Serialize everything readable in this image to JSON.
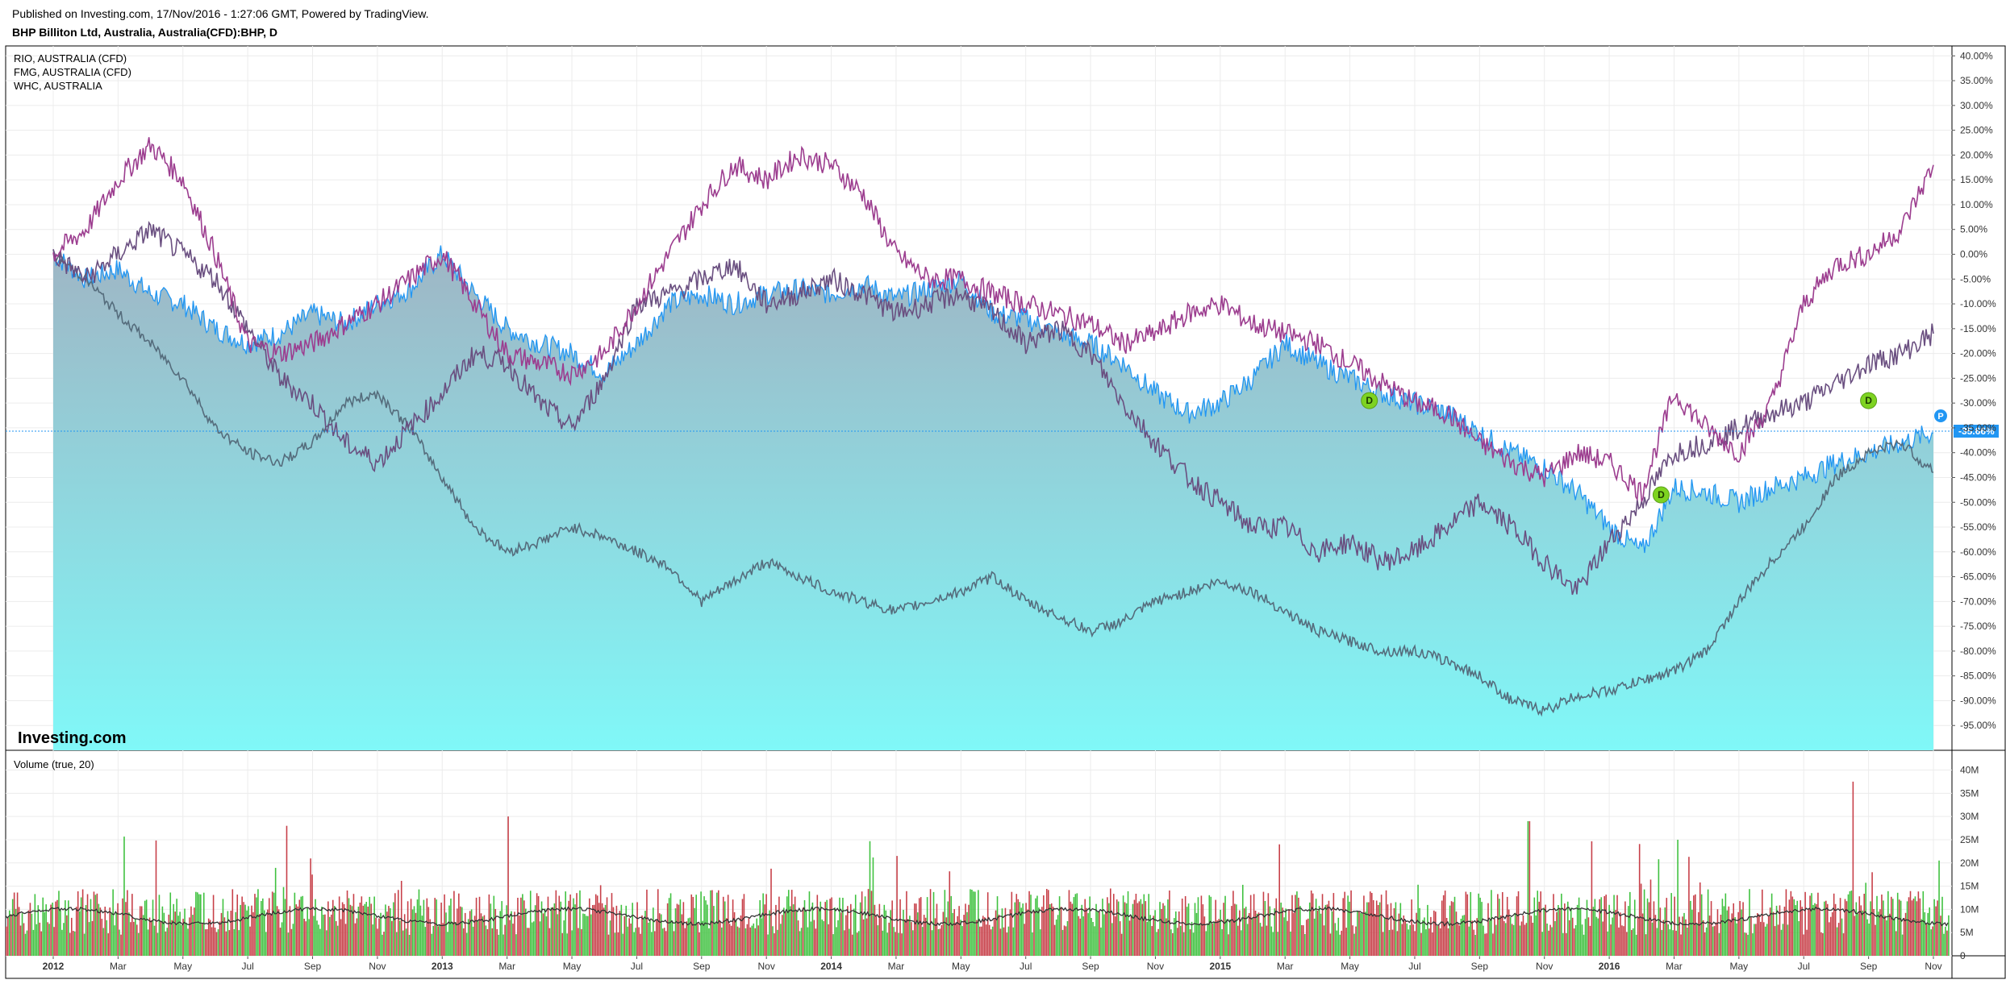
{
  "header": {
    "published": "Published on Investing.com, 17/Nov/2016 - 1:27:06 GMT, Powered by TradingView.",
    "symbol": "BHP Billiton Ltd, Australia, Australia(CFD):BHP, D"
  },
  "legend": [
    "RIO, AUSTRALIA (CFD)",
    "FMG, AUSTRALIA (CFD)",
    "WHC, AUSTRALIA"
  ],
  "volume_label": "Volume (true, 20)",
  "watermark": "Investing.com",
  "colors": {
    "bhp_line": "#2196f3",
    "bhp_fill_top": "#9fb5c4",
    "bhp_fill_bottom": "#80f8f8",
    "rio": "#9c3d8f",
    "fmg": "#6a4f80",
    "whc": "#556c7c",
    "vol_up": "#3fc13f",
    "vol_down": "#c73f48",
    "vol_ma": "#333333",
    "current_label": "#2196f3",
    "dividend": "#7ed321"
  },
  "chart_data": {
    "type": "line",
    "x_ticks": [
      "2012",
      "Mar",
      "May",
      "Jul",
      "Sep",
      "Nov",
      "2013",
      "Mar",
      "May",
      "Jul",
      "Sep",
      "Nov",
      "2014",
      "Mar",
      "May",
      "Jul",
      "Sep",
      "Nov",
      "2015",
      "Mar",
      "May",
      "Jul",
      "Sep",
      "Nov",
      "2016",
      "Mar",
      "May",
      "Jul",
      "Sep",
      "Nov"
    ],
    "y_ticks": [
      "40.00%",
      "35.00%",
      "30.00%",
      "25.00%",
      "20.00%",
      "15.00%",
      "10.00%",
      "5.00%",
      "0.00%",
      "-5.00%",
      "-10.00%",
      "-15.00%",
      "-20.00%",
      "-25.00%",
      "-30.00%",
      "-35.00%",
      "-40.00%",
      "-45.00%",
      "-50.00%",
      "-55.00%",
      "-60.00%",
      "-65.00%",
      "-70.00%",
      "-75.00%",
      "-80.00%",
      "-85.00%",
      "-90.00%",
      "-95.00%"
    ],
    "ylim": [
      -100,
      42
    ],
    "current_value_label": "-35.66%",
    "current_marker_label": "P",
    "dividend_label": "D",
    "dividends": [
      {
        "month": 56.0,
        "value": -29.5
      },
      {
        "month": 49.6,
        "value": -48.5
      },
      {
        "month": 40.6,
        "value": -29.5
      }
    ],
    "series": [
      {
        "name": "BHP",
        "key": "bhp",
        "points": [
          [
            0,
            0
          ],
          [
            1,
            -5
          ],
          [
            2,
            -3
          ],
          [
            3,
            -8
          ],
          [
            4,
            -10
          ],
          [
            5,
            -15
          ],
          [
            6,
            -18
          ],
          [
            7,
            -16
          ],
          [
            8,
            -12
          ],
          [
            9,
            -14
          ],
          [
            10,
            -10
          ],
          [
            11,
            -7
          ],
          [
            12,
            0
          ],
          [
            13,
            -8
          ],
          [
            14,
            -15
          ],
          [
            15,
            -18
          ],
          [
            16,
            -20
          ],
          [
            17,
            -24
          ],
          [
            18,
            -18
          ],
          [
            19,
            -10
          ],
          [
            20,
            -8
          ],
          [
            21,
            -10
          ],
          [
            22,
            -8
          ],
          [
            23,
            -7
          ],
          [
            24,
            -8
          ],
          [
            25,
            -6
          ],
          [
            26,
            -9
          ],
          [
            27,
            -7
          ],
          [
            28,
            -5
          ],
          [
            29,
            -12
          ],
          [
            30,
            -13
          ],
          [
            31,
            -16
          ],
          [
            32,
            -18
          ],
          [
            33,
            -22
          ],
          [
            34,
            -28
          ],
          [
            35,
            -32
          ],
          [
            36,
            -30
          ],
          [
            37,
            -25
          ],
          [
            38,
            -18
          ],
          [
            39,
            -22
          ],
          [
            40,
            -25
          ],
          [
            41,
            -28
          ],
          [
            42,
            -30
          ],
          [
            43,
            -32
          ],
          [
            44,
            -36
          ],
          [
            45,
            -40
          ],
          [
            46,
            -43
          ],
          [
            47,
            -48
          ],
          [
            48,
            -55
          ],
          [
            49,
            -60
          ],
          [
            50,
            -47
          ],
          [
            51,
            -48
          ],
          [
            52,
            -50
          ],
          [
            53,
            -47
          ],
          [
            54,
            -45
          ],
          [
            55,
            -42
          ],
          [
            56,
            -40
          ],
          [
            57,
            -38
          ],
          [
            58,
            -36
          ]
        ]
      },
      {
        "name": "RIO",
        "key": "rio",
        "points": [
          [
            0,
            0
          ],
          [
            1,
            5
          ],
          [
            2,
            15
          ],
          [
            3,
            22
          ],
          [
            4,
            15
          ],
          [
            5,
            0
          ],
          [
            6,
            -18
          ],
          [
            7,
            -20
          ],
          [
            8,
            -18
          ],
          [
            9,
            -14
          ],
          [
            10,
            -10
          ],
          [
            11,
            -5
          ],
          [
            12,
            0
          ],
          [
            13,
            -10
          ],
          [
            14,
            -20
          ],
          [
            15,
            -22
          ],
          [
            16,
            -24
          ],
          [
            17,
            -20
          ],
          [
            18,
            -10
          ],
          [
            19,
            0
          ],
          [
            20,
            10
          ],
          [
            21,
            18
          ],
          [
            22,
            15
          ],
          [
            23,
            20
          ],
          [
            24,
            18
          ],
          [
            25,
            12
          ],
          [
            26,
            0
          ],
          [
            27,
            -5
          ],
          [
            28,
            -5
          ],
          [
            29,
            -8
          ],
          [
            30,
            -10
          ],
          [
            31,
            -12
          ],
          [
            32,
            -14
          ],
          [
            33,
            -18
          ],
          [
            34,
            -16
          ],
          [
            35,
            -12
          ],
          [
            36,
            -10
          ],
          [
            37,
            -14
          ],
          [
            38,
            -16
          ],
          [
            39,
            -18
          ],
          [
            40,
            -22
          ],
          [
            41,
            -26
          ],
          [
            42,
            -30
          ],
          [
            43,
            -32
          ],
          [
            44,
            -38
          ],
          [
            45,
            -42
          ],
          [
            46,
            -45
          ],
          [
            47,
            -40
          ],
          [
            48,
            -42
          ],
          [
            49,
            -48
          ],
          [
            50,
            -28
          ],
          [
            51,
            -35
          ],
          [
            52,
            -40
          ],
          [
            53,
            -30
          ],
          [
            54,
            -10
          ],
          [
            55,
            -2
          ],
          [
            56,
            0
          ],
          [
            57,
            5
          ],
          [
            58,
            18
          ]
        ]
      },
      {
        "name": "FMG",
        "key": "fmg",
        "points": [
          [
            0,
            0
          ],
          [
            1,
            -5
          ],
          [
            2,
            0
          ],
          [
            3,
            5
          ],
          [
            4,
            0
          ],
          [
            5,
            -5
          ],
          [
            6,
            -15
          ],
          [
            7,
            -25
          ],
          [
            8,
            -30
          ],
          [
            9,
            -38
          ],
          [
            10,
            -42
          ],
          [
            11,
            -35
          ],
          [
            12,
            -28
          ],
          [
            13,
            -20
          ],
          [
            14,
            -22
          ],
          [
            15,
            -30
          ],
          [
            16,
            -35
          ],
          [
            17,
            -25
          ],
          [
            18,
            -10
          ],
          [
            19,
            -8
          ],
          [
            20,
            -5
          ],
          [
            21,
            -2
          ],
          [
            22,
            -10
          ],
          [
            23,
            -8
          ],
          [
            24,
            -5
          ],
          [
            25,
            -8
          ],
          [
            26,
            -12
          ],
          [
            27,
            -10
          ],
          [
            28,
            -8
          ],
          [
            29,
            -12
          ],
          [
            30,
            -18
          ],
          [
            31,
            -15
          ],
          [
            32,
            -20
          ],
          [
            33,
            -30
          ],
          [
            34,
            -38
          ],
          [
            35,
            -45
          ],
          [
            36,
            -50
          ],
          [
            37,
            -55
          ],
          [
            38,
            -55
          ],
          [
            39,
            -60
          ],
          [
            40,
            -58
          ],
          [
            41,
            -62
          ],
          [
            42,
            -60
          ],
          [
            43,
            -55
          ],
          [
            44,
            -50
          ],
          [
            45,
            -55
          ],
          [
            46,
            -62
          ],
          [
            47,
            -68
          ],
          [
            48,
            -58
          ],
          [
            49,
            -50
          ],
          [
            50,
            -40
          ],
          [
            51,
            -38
          ],
          [
            52,
            -35
          ],
          [
            53,
            -32
          ],
          [
            54,
            -30
          ],
          [
            55,
            -26
          ],
          [
            56,
            -22
          ],
          [
            57,
            -20
          ],
          [
            58,
            -16
          ]
        ]
      },
      {
        "name": "WHC",
        "key": "whc",
        "points": [
          [
            0,
            0
          ],
          [
            1,
            -5
          ],
          [
            2,
            -12
          ],
          [
            3,
            -18
          ],
          [
            4,
            -25
          ],
          [
            5,
            -35
          ],
          [
            6,
            -40
          ],
          [
            7,
            -42
          ],
          [
            8,
            -38
          ],
          [
            9,
            -30
          ],
          [
            10,
            -28
          ],
          [
            11,
            -35
          ],
          [
            12,
            -45
          ],
          [
            13,
            -55
          ],
          [
            14,
            -60
          ],
          [
            15,
            -58
          ],
          [
            16,
            -55
          ],
          [
            17,
            -57
          ],
          [
            18,
            -60
          ],
          [
            19,
            -63
          ],
          [
            20,
            -70
          ],
          [
            21,
            -66
          ],
          [
            22,
            -62
          ],
          [
            23,
            -65
          ],
          [
            24,
            -68
          ],
          [
            25,
            -70
          ],
          [
            26,
            -72
          ],
          [
            27,
            -70
          ],
          [
            28,
            -68
          ],
          [
            29,
            -65
          ],
          [
            30,
            -70
          ],
          [
            31,
            -73
          ],
          [
            32,
            -76
          ],
          [
            33,
            -74
          ],
          [
            34,
            -70
          ],
          [
            35,
            -68
          ],
          [
            36,
            -66
          ],
          [
            37,
            -68
          ],
          [
            38,
            -72
          ],
          [
            39,
            -76
          ],
          [
            40,
            -78
          ],
          [
            41,
            -80
          ],
          [
            42,
            -80
          ],
          [
            43,
            -82
          ],
          [
            44,
            -85
          ],
          [
            45,
            -90
          ],
          [
            46,
            -92
          ],
          [
            47,
            -89
          ],
          [
            48,
            -88
          ],
          [
            49,
            -86
          ],
          [
            50,
            -84
          ],
          [
            51,
            -80
          ],
          [
            52,
            -70
          ],
          [
            53,
            -62
          ],
          [
            54,
            -55
          ],
          [
            55,
            -45
          ],
          [
            56,
            -40
          ],
          [
            57,
            -38
          ],
          [
            58,
            -44
          ]
        ]
      }
    ],
    "volume": {
      "ylim": [
        0,
        42
      ],
      "y_ticks": [
        "40M",
        "35M",
        "30M",
        "25M",
        "20M",
        "15M",
        "10M",
        "5M",
        "0"
      ],
      "units": "M",
      "spikes": [
        {
          "month": 14.0,
          "value": 30,
          "dir": "down"
        },
        {
          "month": 45.5,
          "value": 29,
          "dir": "up"
        },
        {
          "month": 55.5,
          "value": 37.5,
          "dir": "down"
        },
        {
          "month": 7.2,
          "value": 28,
          "dir": "up"
        },
        {
          "month": 26.0,
          "value": 21.5,
          "dir": "up"
        },
        {
          "month": 37.8,
          "value": 24,
          "dir": "up"
        },
        {
          "month": 50.1,
          "value": 25,
          "dir": "down"
        },
        {
          "month": 59.0,
          "value": 20,
          "dir": "down"
        }
      ],
      "base_level": 9,
      "ma_level": 8.5
    }
  }
}
